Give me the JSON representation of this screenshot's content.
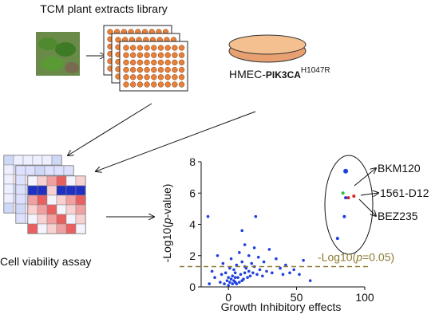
{
  "library_label": "TCM plant extracts library",
  "cell_line": {
    "prefix": "HMEC-",
    "gene": "PIK3CA",
    "mutation": "H1047R"
  },
  "assay_label": "Cell viability assay",
  "plot": {
    "type": "scatter",
    "ylabel": {
      "before": "-Log10(",
      "italic": "p",
      "after": "-value)"
    },
    "xlabel": "Growth Inhibitory effects",
    "xlim": [
      -20,
      100
    ],
    "xticks": [
      0,
      50,
      100
    ],
    "ylim": [
      0,
      8
    ],
    "yticks": [
      0,
      2,
      4,
      6,
      8
    ],
    "color": "#1f3fe0",
    "points": {
      "x": [
        -15,
        -12,
        -10,
        -8,
        -6,
        -5,
        -4,
        -3,
        -2,
        -1,
        0,
        0,
        1,
        1,
        2,
        2,
        3,
        3,
        4,
        4,
        5,
        5,
        6,
        6,
        7,
        8,
        8,
        9,
        10,
        10,
        11,
        12,
        12,
        13,
        14,
        15,
        15,
        16,
        17,
        18,
        19,
        20,
        21,
        22,
        23,
        25,
        26,
        28,
        30,
        32,
        35,
        38,
        40,
        42,
        45,
        48,
        52,
        55,
        60,
        -14,
        10,
        12,
        19,
        5
      ],
      "y": [
        4.5,
        1.0,
        0.6,
        2.0,
        0.3,
        0.8,
        1.5,
        0.2,
        0.9,
        0.4,
        0.1,
        0.6,
        1.2,
        0.3,
        0.5,
        1.8,
        0.2,
        0.7,
        0.4,
        1.1,
        0.3,
        0.9,
        0.2,
        1.4,
        0.6,
        0.3,
        2.2,
        0.8,
        0.4,
        1.6,
        0.5,
        0.9,
        2.7,
        1.2,
        0.6,
        1.0,
        2.0,
        0.7,
        1.5,
        0.9,
        1.3,
        4.5,
        0.8,
        1.9,
        1.1,
        0.7,
        1.6,
        1.0,
        2.4,
        0.9,
        1.8,
        1.2,
        0.8,
        1.4,
        0.9,
        1.1,
        0.8,
        1.7,
        0.4,
        0.2,
        3.6,
        1.3,
        2.5,
        0.6
      ]
    },
    "hits": {
      "x": [
        86,
        84,
        88,
        92,
        86,
        85,
        80
      ],
      "y": [
        7.4,
        6.0,
        5.7,
        5.8,
        5.7,
        4.5,
        3.1
      ],
      "colors": [
        "#1f3fe0",
        "#22c040",
        "#e02020",
        "#e02020",
        "#1f3fe0",
        "#1f3fe0",
        "#1f3fe0"
      ]
    },
    "threshold": {
      "value": 1.3,
      "color": "#8a7a30",
      "label": {
        "before": "-Log10(",
        "italic": "p",
        "after": "=0.05)"
      }
    },
    "annotations": [
      {
        "text": "BKM120",
        "color": "#22b040"
      },
      {
        "text": "1561-D12",
        "color": "#e02020"
      },
      {
        "text": "BEZ235",
        "color": "#f07a20"
      }
    ]
  }
}
